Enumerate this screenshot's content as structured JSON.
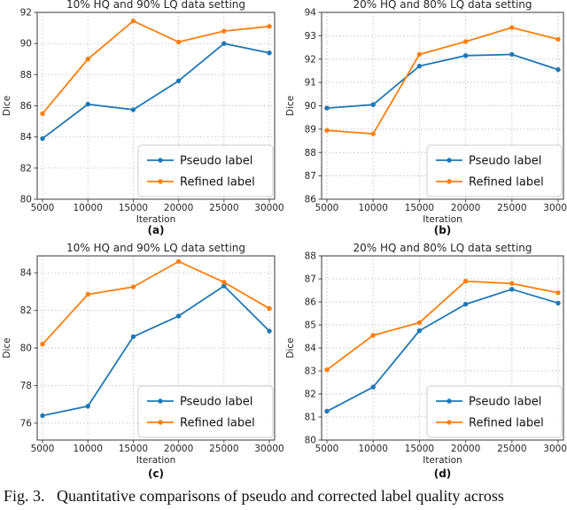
{
  "figure": {
    "caption": "Fig. 3.   Quantitative comparisons of pseudo and corrected label quality across"
  },
  "colors": {
    "pseudo": "#1f77b4",
    "refined": "#ff7f0e",
    "grid": "#c4c4c4",
    "spine": "#4a4a4a",
    "text": "#262626",
    "legend_border": "#cccccc"
  },
  "chart_data": [
    {
      "id": "a",
      "type": "line",
      "title": "10% HQ and 90% LQ data setting",
      "xlabel": "Iteration",
      "ylabel": "Dice",
      "sublabel": "(a)",
      "x": [
        5000,
        10000,
        15000,
        20000,
        25000,
        30000
      ],
      "xtick_labels": [
        "5000",
        "10000",
        "15000",
        "20000",
        "25000",
        "30000"
      ],
      "ylim": [
        80,
        92
      ],
      "yticks": [
        80,
        82,
        84,
        86,
        88,
        90,
        92
      ],
      "grid": true,
      "legend_position": "lower right",
      "series": [
        {
          "name": "Pseudo label",
          "color_key": "pseudo",
          "values": [
            83.9,
            86.1,
            85.75,
            87.6,
            90.0,
            89.4
          ]
        },
        {
          "name": "Refined label",
          "color_key": "refined",
          "values": [
            85.5,
            89.0,
            91.45,
            90.1,
            90.8,
            91.1
          ]
        }
      ]
    },
    {
      "id": "b",
      "type": "line",
      "title": "20% HQ and 80% LQ data setting",
      "xlabel": "Iteration",
      "ylabel": "Dice",
      "sublabel": "(b)",
      "x": [
        5000,
        10000,
        15000,
        20000,
        25000,
        30000
      ],
      "xtick_labels": [
        "5000",
        "10000",
        "15000",
        "20000",
        "25000",
        "30000"
      ],
      "ylim": [
        86,
        94
      ],
      "yticks": [
        86,
        87,
        88,
        89,
        90,
        91,
        92,
        93,
        94
      ],
      "grid": true,
      "legend_position": "lower right",
      "series": [
        {
          "name": "Pseudo label",
          "color_key": "pseudo",
          "values": [
            89.9,
            90.05,
            91.7,
            92.15,
            92.2,
            91.55
          ]
        },
        {
          "name": "Refined label",
          "color_key": "refined",
          "values": [
            88.95,
            88.8,
            92.2,
            92.75,
            93.35,
            92.85
          ]
        }
      ]
    },
    {
      "id": "c",
      "type": "line",
      "title": "10% HQ and 90% LQ data setting",
      "xlabel": "Iteration",
      "ylabel": "Dice",
      "sublabel": "(c)",
      "x": [
        5000,
        10000,
        15000,
        20000,
        25000,
        30000
      ],
      "xtick_labels": [
        "5000",
        "10000",
        "15000",
        "20000",
        "25000",
        "30000"
      ],
      "ylim": [
        75.1,
        84.9
      ],
      "yticks": [
        76,
        78,
        80,
        82,
        84
      ],
      "grid": true,
      "legend_position": "lower right",
      "series": [
        {
          "name": "Pseudo label",
          "color_key": "pseudo",
          "values": [
            76.4,
            76.9,
            80.6,
            81.7,
            83.3,
            80.9
          ]
        },
        {
          "name": "Refined label",
          "color_key": "refined",
          "values": [
            80.2,
            82.85,
            83.25,
            84.6,
            83.5,
            82.1
          ]
        }
      ]
    },
    {
      "id": "d",
      "type": "line",
      "title": "20% HQ and 80% LQ data setting",
      "xlabel": "Iteration",
      "ylabel": "Dice",
      "sublabel": "(d)",
      "x": [
        5000,
        10000,
        15000,
        20000,
        25000,
        30000
      ],
      "xtick_labels": [
        "5000",
        "10000",
        "15000",
        "20000",
        "25000",
        "30000"
      ],
      "ylim": [
        80,
        88
      ],
      "yticks": [
        80,
        81,
        82,
        83,
        84,
        85,
        86,
        87,
        88
      ],
      "grid": true,
      "legend_position": "lower right",
      "series": [
        {
          "name": "Pseudo label",
          "color_key": "pseudo",
          "values": [
            81.25,
            82.3,
            84.75,
            85.9,
            86.55,
            85.95
          ]
        },
        {
          "name": "Refined label",
          "color_key": "refined",
          "values": [
            83.05,
            84.55,
            85.1,
            86.9,
            86.8,
            86.4
          ]
        }
      ]
    }
  ]
}
